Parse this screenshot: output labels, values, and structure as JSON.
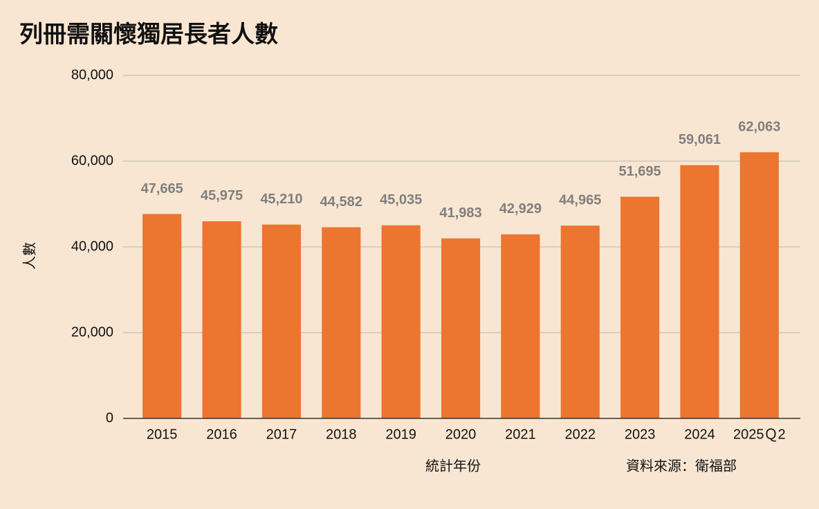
{
  "chart_data": {
    "type": "bar",
    "title": "列冊需關懷獨居長者人數",
    "y_label": "人數",
    "x_label": "統計年份",
    "source": "資料來源：衛福部",
    "categories": [
      "2015",
      "2016",
      "2017",
      "2018",
      "2019",
      "2020",
      "2021",
      "2022",
      "2023",
      "2024",
      "2025Ｑ2"
    ],
    "values": [
      47665,
      45975,
      45210,
      44582,
      45035,
      41983,
      42929,
      44965,
      51695,
      59061,
      62063
    ],
    "value_labels": [
      "47,665",
      "45,975",
      "45,210",
      "44,582",
      "45,035",
      "41,983",
      "42,929",
      "44,965",
      "51,695",
      "59,061",
      "62,063"
    ],
    "color": "#ec7530",
    "ylim": [
      0,
      80000
    ],
    "yticks": [
      0,
      {
        "value": 20000,
        "label": "20,000"
      },
      {
        "value": 40000,
        "label": "40,000"
      },
      {
        "value": 60000,
        "label": "60,000"
      },
      {
        "value": 80000,
        "label": "80,000"
      }
    ],
    "grid": true
  }
}
